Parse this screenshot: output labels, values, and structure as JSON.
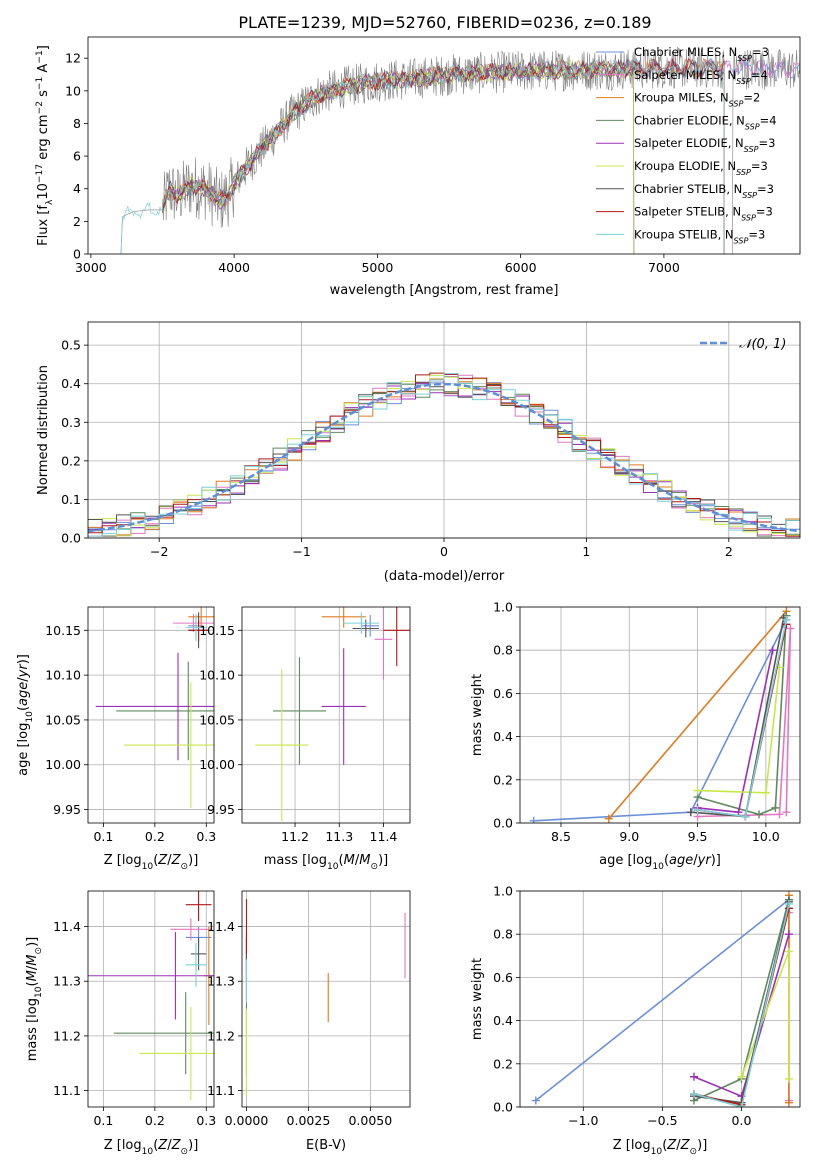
{
  "figure": {
    "title": "PLATE=1239, MJD=52760, FIBERID=0236, z=0.189"
  },
  "colors": {
    "Chabrier MILES": "#6b8fd9",
    "Salpeter MILES": "#e377c2",
    "Kroupa MILES": "#e07b1c",
    "Chabrier ELODIE": "#5f8a5f",
    "Salpeter ELODIE": "#9b30b8",
    "Kroupa ELODIE": "#c8e84a",
    "Chabrier STELIB": "#555555",
    "Salpeter STELIB": "#b01818",
    "Kroupa STELIB": "#79d0d8",
    "data": "#808080",
    "normal": "#5b8fd9"
  },
  "chart_data": [
    {
      "type": "line",
      "id": "spectrum",
      "xlabel": "wavelength [Angstrom, rest frame]",
      "ylabel_parts": [
        "Flux [f",
        "λ",
        "10",
        "−17",
        " erg cm",
        "−2",
        " s",
        "−1",
        " A",
        "−1",
        "]"
      ],
      "xlim": [
        2980,
        7950
      ],
      "ylim": [
        0,
        13.3
      ],
      "xticks": [
        "3000",
        "4000",
        "5000",
        "6000",
        "7000"
      ],
      "yticks": [
        "0",
        "2",
        "4",
        "6",
        "8",
        "10",
        "12"
      ],
      "legend_position": "upper-right",
      "legend": [
        {
          "label": "Chabrier MILES",
          "n": "3"
        },
        {
          "label": "Salpeter MILES",
          "n": "4"
        },
        {
          "label": "Kroupa MILES",
          "n": "2"
        },
        {
          "label": "Chabrier ELODIE",
          "n": "4"
        },
        {
          "label": "Salpeter ELODIE",
          "n": "3"
        },
        {
          "label": "Kroupa ELODIE",
          "n": "3"
        },
        {
          "label": "Chabrier STELIB",
          "n": "3"
        },
        {
          "label": "Salpeter STELIB",
          "n": "3"
        },
        {
          "label": "Kroupa STELIB",
          "n": "3"
        }
      ],
      "legend_sub": "SSP",
      "continuum": [
        [
          3210,
          0
        ],
        [
          3220,
          2.3
        ],
        [
          3300,
          2.6
        ],
        [
          3400,
          2.7
        ],
        [
          3500,
          2.7
        ],
        [
          3550,
          4.0
        ],
        [
          3600,
          3.5
        ],
        [
          3700,
          4.2
        ],
        [
          3800,
          4.0
        ],
        [
          3900,
          3.2
        ],
        [
          3950,
          3.5
        ],
        [
          4000,
          4.3
        ],
        [
          4100,
          5.5
        ],
        [
          4200,
          6.5
        ],
        [
          4300,
          7.5
        ],
        [
          4400,
          8.5
        ],
        [
          4500,
          9.2
        ],
        [
          4600,
          9.8
        ],
        [
          4800,
          10.3
        ],
        [
          5000,
          10.6
        ],
        [
          5200,
          10.7
        ],
        [
          5500,
          11.0
        ],
        [
          6000,
          11.2
        ],
        [
          6500,
          11.3
        ],
        [
          7000,
          11.4
        ],
        [
          7500,
          11.4
        ],
        [
          7950,
          11.3
        ]
      ],
      "model_ranges": [
        {
          "series": "Chabrier MILES",
          "range": [
            3500,
            7950
          ]
        },
        {
          "series": "Salpeter MILES",
          "range": [
            3500,
            7950
          ]
        },
        {
          "series": "Kroupa MILES",
          "range": [
            3500,
            7420
          ]
        },
        {
          "series": "Chabrier ELODIE",
          "range": [
            3500,
            6790
          ]
        },
        {
          "series": "Salpeter ELODIE",
          "range": [
            3500,
            6790
          ]
        },
        {
          "series": "Kroupa ELODIE",
          "range": [
            3500,
            6790
          ]
        },
        {
          "series": "Chabrier STELIB",
          "range": [
            3500,
            7420
          ]
        },
        {
          "series": "Salpeter STELIB",
          "range": [
            3500,
            7420
          ]
        },
        {
          "series": "Kroupa STELIB",
          "range": [
            3210,
            7420
          ]
        }
      ]
    },
    {
      "type": "histogram",
      "id": "residuals",
      "xlabel": "(data-model)/error",
      "ylabel": "Normed distribution",
      "xlim": [
        -2.5,
        2.5
      ],
      "ylim": [
        0,
        0.56
      ],
      "xticks": [
        "−2",
        "−1",
        "0",
        "1",
        "2"
      ],
      "yticks": [
        "0.0",
        "0.1",
        "0.2",
        "0.3",
        "0.4",
        "0.5"
      ],
      "legend": "𝒩(0, 1)",
      "legend_position": "upper-right",
      "bin_width": 0.1,
      "series_names": [
        "Chabrier MILES",
        "Salpeter MILES",
        "Kroupa MILES",
        "Chabrier ELODIE",
        "Salpeter ELODIE",
        "Kroupa ELODIE",
        "Chabrier STELIB",
        "Salpeter STELIB",
        "Kroupa STELIB"
      ]
    },
    {
      "type": "scatter",
      "id": "age-Z",
      "xlabel": "Z [log10(Z/Z☉)]",
      "ylabel": "age  [log10(age/yr)]",
      "xlim": [
        0.07,
        0.315
      ],
      "ylim": [
        9.935,
        10.176
      ],
      "xticks": [
        "0.1",
        "0.2",
        "0.3"
      ],
      "yticks": [
        "9.95",
        "10.00",
        "10.05",
        "10.10",
        "10.15"
      ],
      "points": [
        {
          "series": "Chabrier MILES",
          "x": 0.28,
          "y": 10.155,
          "xerr": 0.015,
          "yerr": 0.012
        },
        {
          "series": "Salpeter MILES",
          "x": 0.275,
          "y": 10.158,
          "xerr": 0.04,
          "yerr": 0.01
        },
        {
          "series": "Kroupa MILES",
          "x": 0.29,
          "y": 10.165,
          "xerr": 0.025,
          "yerr": 0.012
        },
        {
          "series": "Chabrier ELODIE",
          "x": 0.265,
          "y": 10.06,
          "xerr": 0.14,
          "yerr": 0.055
        },
        {
          "series": "Salpeter ELODIE",
          "x": 0.245,
          "y": 10.065,
          "xerr": 0.16,
          "yerr": 0.06
        },
        {
          "series": "Kroupa ELODIE",
          "x": 0.27,
          "y": 10.022,
          "xerr": 0.13,
          "yerr": 0.07
        },
        {
          "series": "Chabrier STELIB",
          "x": 0.285,
          "y": 10.15,
          "xerr": 0.02,
          "yerr": 0.02
        },
        {
          "series": "Salpeter STELIB",
          "x": 0.285,
          "y": 10.15,
          "xerr": 0.02,
          "yerr": 0.012
        },
        {
          "series": "Kroupa STELIB",
          "x": 0.28,
          "y": 10.153,
          "xerr": 0.02,
          "yerr": 0.015
        }
      ]
    },
    {
      "type": "scatter",
      "id": "age-mass",
      "xlabel": "mass [log10(M/M☉)]",
      "ylabel": "",
      "xlim": [
        11.08,
        11.46
      ],
      "ylim": [
        9.935,
        10.176
      ],
      "xticks": [
        "11.2",
        "11.3",
        "11.4"
      ],
      "yticks": [
        "9.95",
        "10.00",
        "10.05",
        "10.10",
        "10.15"
      ],
      "points": [
        {
          "series": "Chabrier MILES",
          "x": 11.37,
          "y": 10.155,
          "xerr": 0.02,
          "yerr": 0.012
        },
        {
          "series": "Salpeter MILES",
          "x": 11.4,
          "y": 10.14,
          "xerr": 0.02,
          "yerr": 0.045
        },
        {
          "series": "Kroupa MILES",
          "x": 11.31,
          "y": 10.165,
          "xerr": 0.05,
          "yerr": 0.012
        },
        {
          "series": "Chabrier ELODIE",
          "x": 11.21,
          "y": 10.06,
          "xerr": 0.06,
          "yerr": 0.06
        },
        {
          "series": "Salpeter ELODIE",
          "x": 11.31,
          "y": 10.065,
          "xerr": 0.05,
          "yerr": 0.065
        },
        {
          "series": "Kroupa ELODIE",
          "x": 11.17,
          "y": 10.022,
          "xerr": 0.06,
          "yerr": 0.085
        },
        {
          "series": "Chabrier STELIB",
          "x": 11.36,
          "y": 10.152,
          "xerr": 0.03,
          "yerr": 0.01
        },
        {
          "series": "Salpeter STELIB",
          "x": 11.43,
          "y": 10.15,
          "xerr": 0.03,
          "yerr": 0.04
        },
        {
          "series": "Kroupa STELIB",
          "x": 11.35,
          "y": 10.158,
          "xerr": 0.04,
          "yerr": 0.012
        }
      ]
    },
    {
      "type": "line",
      "id": "weight-age",
      "xlabel": "age  [log10(age/yr)]",
      "ylabel": "mass weight",
      "xlim": [
        8.2,
        10.25
      ],
      "ylim": [
        0,
        1
      ],
      "xticks": [
        "8.5",
        "9.0",
        "9.5",
        "10.0"
      ],
      "yticks": [
        "0.0",
        "0.2",
        "0.4",
        "0.6",
        "0.8",
        "1.0"
      ],
      "series": [
        {
          "name": "Chabrier MILES",
          "points": [
            [
              8.3,
              0.01
            ],
            [
              9.45,
              0.05
            ],
            [
              10.15,
              0.94
            ]
          ]
        },
        {
          "name": "Salpeter MILES",
          "points": [
            [
              9.5,
              0.03
            ],
            [
              10.1,
              0.04
            ],
            [
              10.18,
              0.9
            ],
            [
              10.15,
              0.05
            ]
          ]
        },
        {
          "name": "Kroupa MILES",
          "points": [
            [
              8.85,
              0.02
            ],
            [
              10.15,
              0.98
            ]
          ]
        },
        {
          "name": "Chabrier ELODIE",
          "points": [
            [
              9.5,
              0.12
            ],
            [
              9.95,
              0.04
            ],
            [
              10.07,
              0.07
            ],
            [
              10.15,
              0.96
            ]
          ]
        },
        {
          "name": "Salpeter ELODIE",
          "points": [
            [
              9.5,
              0.07
            ],
            [
              9.8,
              0.05
            ],
            [
              10.05,
              0.8
            ]
          ]
        },
        {
          "name": "Kroupa ELODIE",
          "points": [
            [
              9.5,
              0.15
            ],
            [
              10.0,
              0.14
            ],
            [
              10.1,
              0.72
            ]
          ]
        },
        {
          "name": "Chabrier STELIB",
          "points": [
            [
              9.45,
              0.05
            ],
            [
              9.85,
              0.03
            ],
            [
              10.13,
              0.95
            ]
          ]
        },
        {
          "name": "Salpeter STELIB",
          "points": [
            [
              9.5,
              0.06
            ],
            [
              9.85,
              0.03
            ],
            [
              10.15,
              0.92
            ]
          ]
        },
        {
          "name": "Kroupa STELIB",
          "points": [
            [
              9.5,
              0.06
            ],
            [
              9.85,
              0.03
            ],
            [
              10.15,
              0.94
            ]
          ]
        }
      ]
    },
    {
      "type": "scatter",
      "id": "mass-Z",
      "xlabel": "Z [log10(Z/Z☉)]",
      "ylabel": "mass [log10(M/M☉)]",
      "xlim": [
        0.07,
        0.315
      ],
      "ylim": [
        11.07,
        11.465
      ],
      "xticks": [
        "0.1",
        "0.2",
        "0.3"
      ],
      "yticks": [
        "11.1",
        "11.2",
        "11.3",
        "11.4"
      ],
      "points": [
        {
          "series": "Chabrier MILES",
          "x": 0.285,
          "y": 11.38,
          "xerr": 0.025,
          "yerr": 0.02
        },
        {
          "series": "Salpeter MILES",
          "x": 0.27,
          "y": 11.395,
          "xerr": 0.04,
          "yerr": 0.02
        },
        {
          "series": "Kroupa MILES",
          "x": 0.305,
          "y": 11.31,
          "xerr": 0.01,
          "yerr": 0.09
        },
        {
          "series": "Chabrier ELODIE",
          "x": 0.26,
          "y": 11.205,
          "xerr": 0.14,
          "yerr": 0.075
        },
        {
          "series": "Salpeter ELODIE",
          "x": 0.24,
          "y": 11.31,
          "xerr": 0.17,
          "yerr": 0.08
        },
        {
          "series": "Kroupa ELODIE",
          "x": 0.27,
          "y": 11.168,
          "xerr": 0.1,
          "yerr": 0.085
        },
        {
          "series": "Chabrier STELIB",
          "x": 0.285,
          "y": 11.35,
          "xerr": 0.015,
          "yerr": 0.03
        },
        {
          "series": "Salpeter STELIB",
          "x": 0.285,
          "y": 11.44,
          "xerr": 0.025,
          "yerr": 0.03
        },
        {
          "series": "Kroupa STELIB",
          "x": 0.28,
          "y": 11.33,
          "xerr": 0.02,
          "yerr": 0.04
        }
      ]
    },
    {
      "type": "scatter",
      "id": "mass-EBV",
      "xlabel": "E(B-V)",
      "ylabel": "",
      "xlim": [
        -0.00018,
        0.0066
      ],
      "ylim": [
        11.07,
        11.465
      ],
      "xticks": [
        "0.0000",
        "0.0025",
        "0.0050"
      ],
      "xtick_values": [
        0,
        0.0025,
        0.005
      ],
      "yticks": [
        "11.1",
        "11.2",
        "11.3",
        "11.4"
      ],
      "points": [
        {
          "series": "Chabrier MILES",
          "x": 0.0,
          "y": 11.34,
          "xerr": 0,
          "yerr": 0.04
        },
        {
          "series": "Salpeter MILES",
          "x": 0.0064,
          "y": 11.365,
          "xerr": 0,
          "yerr": 0.06
        },
        {
          "series": "Kroupa MILES",
          "x": 0.0033,
          "y": 11.27,
          "xerr": 0,
          "yerr": 0.045
        },
        {
          "series": "Chabrier ELODIE",
          "x": 0.0,
          "y": 11.2,
          "xerr": 0,
          "yerr": 0.07
        },
        {
          "series": "Salpeter ELODIE",
          "x": 0.0,
          "y": 11.33,
          "xerr": 0,
          "yerr": 0.06
        },
        {
          "series": "Kroupa ELODIE",
          "x": 0.0,
          "y": 11.17,
          "xerr": 0,
          "yerr": 0.08
        },
        {
          "series": "Chabrier STELIB",
          "x": 0.0,
          "y": 11.35,
          "xerr": 0,
          "yerr": 0.03
        },
        {
          "series": "Salpeter STELIB",
          "x": 0.0,
          "y": 11.4,
          "xerr": 0,
          "yerr": 0.05
        },
        {
          "series": "Kroupa STELIB",
          "x": 0.0,
          "y": 11.3,
          "xerr": 0,
          "yerr": 0.04
        }
      ]
    },
    {
      "type": "line",
      "id": "weight-Z",
      "xlabel": "Z [log10(Z/Z☉)]",
      "ylabel": "mass weight",
      "xlim": [
        -1.4,
        0.37
      ],
      "ylim": [
        0,
        1
      ],
      "xticks": [
        "−1.0",
        "−0.5",
        "0.0"
      ],
      "xtick_values": [
        -1,
        -0.5,
        0
      ],
      "yticks": [
        "0.0",
        "0.2",
        "0.4",
        "0.6",
        "0.8",
        "1.0"
      ],
      "series": [
        {
          "name": "Chabrier MILES",
          "points": [
            [
              -1.3,
              0.03
            ],
            [
              0.3,
              0.96
            ]
          ]
        },
        {
          "name": "Salpeter MILES",
          "points": [
            [
              0.3,
              0.9
            ],
            [
              0.3,
              0.03
            ]
          ]
        },
        {
          "name": "Kroupa MILES",
          "points": [
            [
              0.3,
              0.98
            ],
            [
              0.3,
              0.02
            ]
          ]
        },
        {
          "name": "Chabrier ELODIE",
          "points": [
            [
              -0.3,
              0.03
            ],
            [
              0.0,
              0.13
            ],
            [
              0.3,
              0.96
            ]
          ]
        },
        {
          "name": "Salpeter ELODIE",
          "points": [
            [
              -0.3,
              0.14
            ],
            [
              0.0,
              0.05
            ],
            [
              0.3,
              0.8
            ]
          ]
        },
        {
          "name": "Kroupa ELODIE",
          "points": [
            [
              0.0,
              0.14
            ],
            [
              0.3,
              0.72
            ],
            [
              0.3,
              0.13
            ]
          ]
        },
        {
          "name": "Chabrier STELIB",
          "points": [
            [
              -0.3,
              0.05
            ],
            [
              0.0,
              0.02
            ],
            [
              0.3,
              0.95
            ]
          ]
        },
        {
          "name": "Salpeter STELIB",
          "points": [
            [
              -0.3,
              0.06
            ],
            [
              0.0,
              0.01
            ],
            [
              0.3,
              0.92
            ]
          ]
        },
        {
          "name": "Kroupa STELIB",
          "points": [
            [
              -0.3,
              0.06
            ],
            [
              0.0,
              0.0
            ],
            [
              0.3,
              0.94
            ]
          ]
        }
      ]
    }
  ]
}
